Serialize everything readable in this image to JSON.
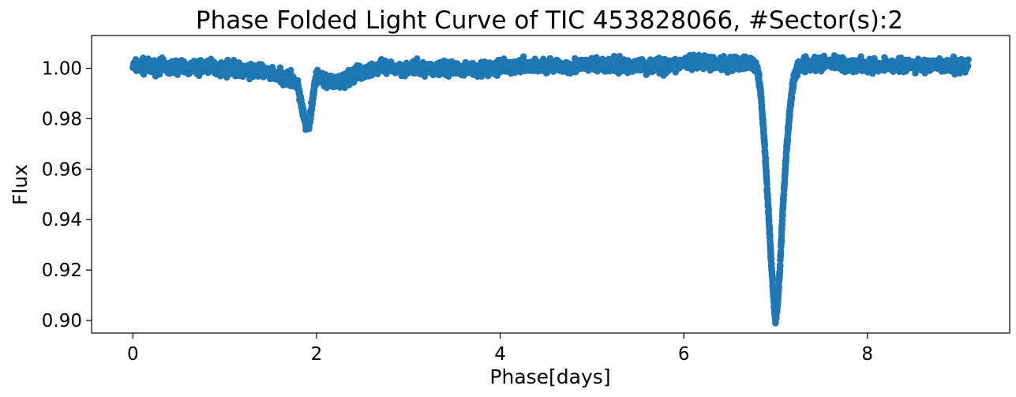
{
  "chart_data": {
    "type": "scatter",
    "title": "Phase Folded Light Curve of TIC 453828066, #Sector(s):2",
    "xlabel": "Phase[days]",
    "ylabel": "Flux",
    "xlim": [
      -0.45,
      9.55
    ],
    "ylim": [
      0.895,
      1.013
    ],
    "xticks": [
      0,
      2,
      4,
      6,
      8
    ],
    "xtick_labels": [
      "0",
      "2",
      "4",
      "6",
      "8"
    ],
    "yticks": [
      0.9,
      0.92,
      0.94,
      0.96,
      0.98,
      1.0
    ],
    "ytick_labels": [
      "0.90",
      "0.92",
      "0.94",
      "0.96",
      "0.98",
      "1.00"
    ],
    "grid": false,
    "legend": "none",
    "color": "#1f77b4",
    "series": [
      {
        "x": [
          0.0,
          0.1,
          0.2,
          0.3,
          0.4,
          0.5,
          0.6,
          0.7,
          0.8,
          0.9,
          1.0,
          1.1,
          1.2,
          1.3,
          1.4,
          1.5,
          1.6,
          1.7,
          1.75,
          1.8,
          1.83,
          1.86,
          1.88,
          1.9,
          1.92,
          1.94,
          1.96,
          1.98,
          2.0,
          2.05,
          2.1,
          2.2,
          2.3,
          2.4,
          2.5,
          2.6,
          2.8,
          3.0,
          3.2,
          3.4,
          3.6,
          3.8,
          4.0,
          4.2,
          4.4,
          4.6,
          4.8,
          5.0,
          5.2,
          5.4,
          5.6,
          5.8,
          6.0,
          6.2,
          6.4,
          6.6,
          6.7,
          6.75,
          6.8,
          6.84,
          6.88,
          6.92,
          6.95,
          6.98,
          7.0,
          7.02,
          7.05,
          7.08,
          7.12,
          7.16,
          7.2,
          7.25,
          7.3,
          7.4,
          7.6,
          7.8,
          8.0,
          8.2,
          8.4,
          8.6,
          8.8,
          9.0,
          9.1
        ],
        "y": [
          1.001,
          1.001,
          1.0,
          1.001,
          1.0,
          1.001,
          1.0,
          1.0,
          1.001,
          1.0,
          1.0,
          1.0,
          0.999,
          0.999,
          0.999,
          0.998,
          0.997,
          0.996,
          0.995,
          0.992,
          0.987,
          0.981,
          0.978,
          0.977,
          0.978,
          0.982,
          0.988,
          0.994,
          0.996,
          0.996,
          0.995,
          0.994,
          0.995,
          0.997,
          0.999,
          1.0,
          1.0,
          1.0,
          1.0,
          1.0,
          1.0,
          1.0,
          1.0,
          1.001,
          1.001,
          1.001,
          1.001,
          1.001,
          1.001,
          1.001,
          1.001,
          1.001,
          1.002,
          1.002,
          1.002,
          1.002,
          1.002,
          1.002,
          1.0,
          0.99,
          0.97,
          0.945,
          0.925,
          0.908,
          0.9,
          0.906,
          0.922,
          0.945,
          0.968,
          0.985,
          0.996,
          1.001,
          1.002,
          1.002,
          1.002,
          1.002,
          1.001,
          1.001,
          1.001,
          1.001,
          1.001,
          1.001,
          1.001
        ]
      }
    ]
  }
}
